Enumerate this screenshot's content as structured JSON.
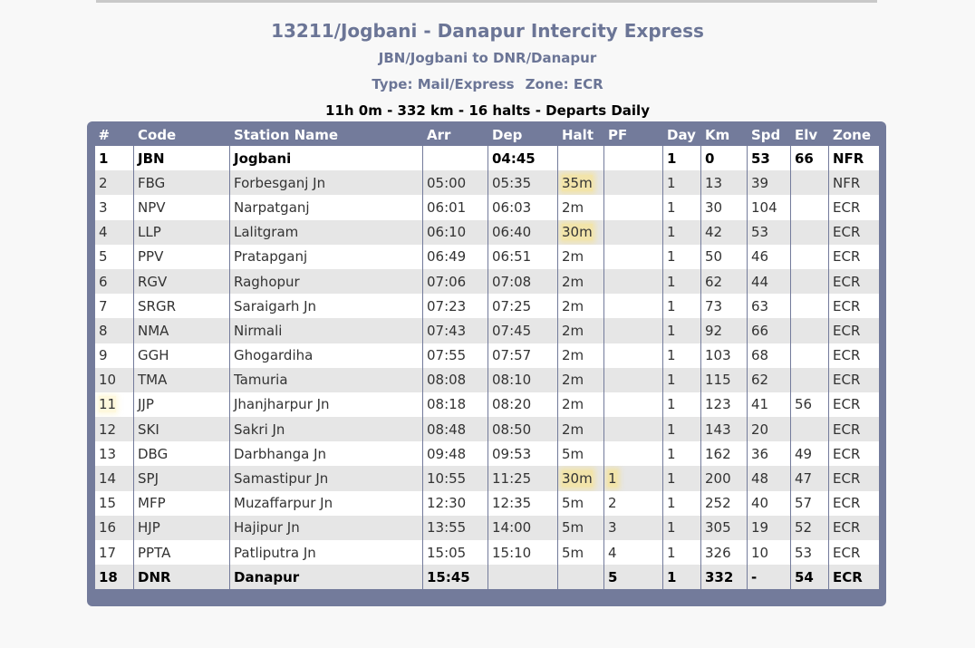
{
  "train": {
    "title": "13211/Jogbani - Danapur Intercity Express",
    "route": "JBN/Jogbani to DNR/Danapur",
    "type_label": "Type: Mail/Express",
    "zone_label": "Zone: ECR",
    "summary": "11h 0m - 332 km - 16 halts - Departs Daily"
  },
  "table": {
    "columns": [
      "#",
      "Code",
      "Station Name",
      "Arr",
      "Dep",
      "Halt",
      "PF",
      "Day",
      "Km",
      "Spd",
      "Elv",
      "Zone"
    ],
    "rows": [
      [
        "1",
        "JBN",
        "Jogbani",
        "",
        "04:45",
        "",
        "",
        "1",
        "0",
        "53",
        "66",
        "NFR"
      ],
      [
        "2",
        "FBG",
        "Forbesganj Jn",
        "05:00",
        "05:35",
        "35m",
        "",
        "1",
        "13",
        "39",
        "",
        "NFR"
      ],
      [
        "3",
        "NPV",
        "Narpatganj",
        "06:01",
        "06:03",
        "2m",
        "",
        "1",
        "30",
        "104",
        "",
        "ECR"
      ],
      [
        "4",
        "LLP",
        "Lalitgram",
        "06:10",
        "06:40",
        "30m",
        "",
        "1",
        "42",
        "53",
        "",
        "ECR"
      ],
      [
        "5",
        "PPV",
        "Pratapganj",
        "06:49",
        "06:51",
        "2m",
        "",
        "1",
        "50",
        "46",
        "",
        "ECR"
      ],
      [
        "6",
        "RGV",
        "Raghopur",
        "07:06",
        "07:08",
        "2m",
        "",
        "1",
        "62",
        "44",
        "",
        "ECR"
      ],
      [
        "7",
        "SRGR",
        "Saraigarh Jn",
        "07:23",
        "07:25",
        "2m",
        "",
        "1",
        "73",
        "63",
        "",
        "ECR"
      ],
      [
        "8",
        "NMA",
        "Nirmali",
        "07:43",
        "07:45",
        "2m",
        "",
        "1",
        "92",
        "66",
        "",
        "ECR"
      ],
      [
        "9",
        "GGH",
        "Ghogardiha",
        "07:55",
        "07:57",
        "2m",
        "",
        "1",
        "103",
        "68",
        "",
        "ECR"
      ],
      [
        "10",
        "TMA",
        "Tamuria",
        "08:08",
        "08:10",
        "2m",
        "",
        "1",
        "115",
        "62",
        "",
        "ECR"
      ],
      [
        "11",
        "JJP",
        "Jhanjharpur Jn",
        "08:18",
        "08:20",
        "2m",
        "",
        "1",
        "123",
        "41",
        "56",
        "ECR"
      ],
      [
        "12",
        "SKI",
        "Sakri Jn",
        "08:48",
        "08:50",
        "2m",
        "",
        "1",
        "143",
        "20",
        "",
        "ECR"
      ],
      [
        "13",
        "DBG",
        "Darbhanga Jn",
        "09:48",
        "09:53",
        "5m",
        "",
        "1",
        "162",
        "36",
        "49",
        "ECR"
      ],
      [
        "14",
        "SPJ",
        "Samastipur Jn",
        "10:55",
        "11:25",
        "30m",
        "1",
        "1",
        "200",
        "48",
        "47",
        "ECR"
      ],
      [
        "15",
        "MFP",
        "Muzaffarpur Jn",
        "12:30",
        "12:35",
        "5m",
        "2",
        "1",
        "252",
        "40",
        "57",
        "ECR"
      ],
      [
        "16",
        "HJP",
        "Hajipur Jn",
        "13:55",
        "14:00",
        "5m",
        "3",
        "1",
        "305",
        "19",
        "52",
        "ECR"
      ],
      [
        "17",
        "PPTA",
        "Patliputra Jn",
        "15:05",
        "15:10",
        "5m",
        "4",
        "1",
        "326",
        "10",
        "53",
        "ECR"
      ],
      [
        "18",
        "DNR",
        "Danapur",
        "15:45",
        "",
        "",
        "5",
        "1",
        "332",
        "-",
        "54",
        "ECR"
      ]
    ]
  },
  "colors": {
    "accent": "#737b9b",
    "title_text": "#6b7596",
    "row_alt": "#e6e6e6",
    "highlight": "#fce278"
  }
}
